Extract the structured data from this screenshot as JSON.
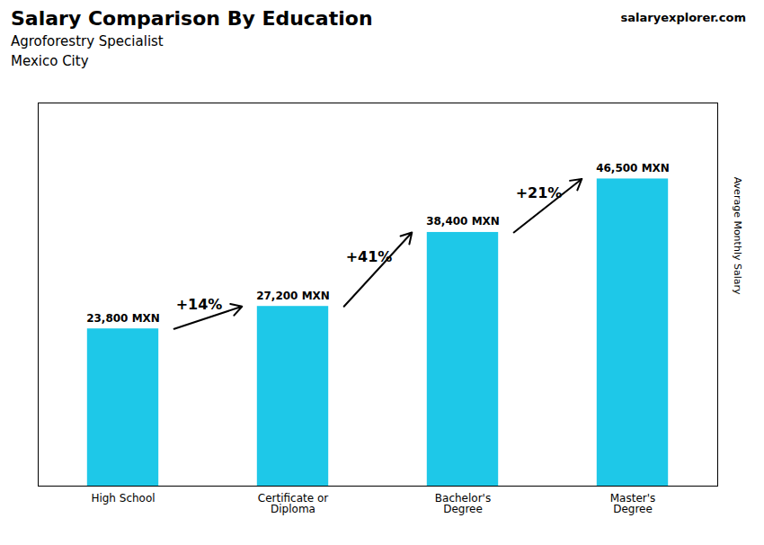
{
  "chart_data": {
    "type": "bar",
    "title": "Salary Comparison By Education",
    "subtitle": [
      "Agroforestry Specialist",
      "Mexico City"
    ],
    "caption": "salaryexplorer.com",
    "ylabel": "Average Monthly Salary",
    "categories": [
      "High School",
      "Certificate or\nDiploma",
      "Bachelor's\nDegree",
      "Master's\nDegree"
    ],
    "values": [
      23800,
      27200,
      38400,
      46500
    ],
    "value_labels": [
      "23,800 MXN",
      "27,200 MXN",
      "38,400 MXN",
      "46,500 MXN"
    ],
    "data_labels": true,
    "annotations": [
      "+14%",
      "+41%",
      "+21%"
    ],
    "color": "#1EC8E8",
    "ylim": [
      0,
      58000
    ],
    "tick_labels": "x",
    "grid": false
  }
}
